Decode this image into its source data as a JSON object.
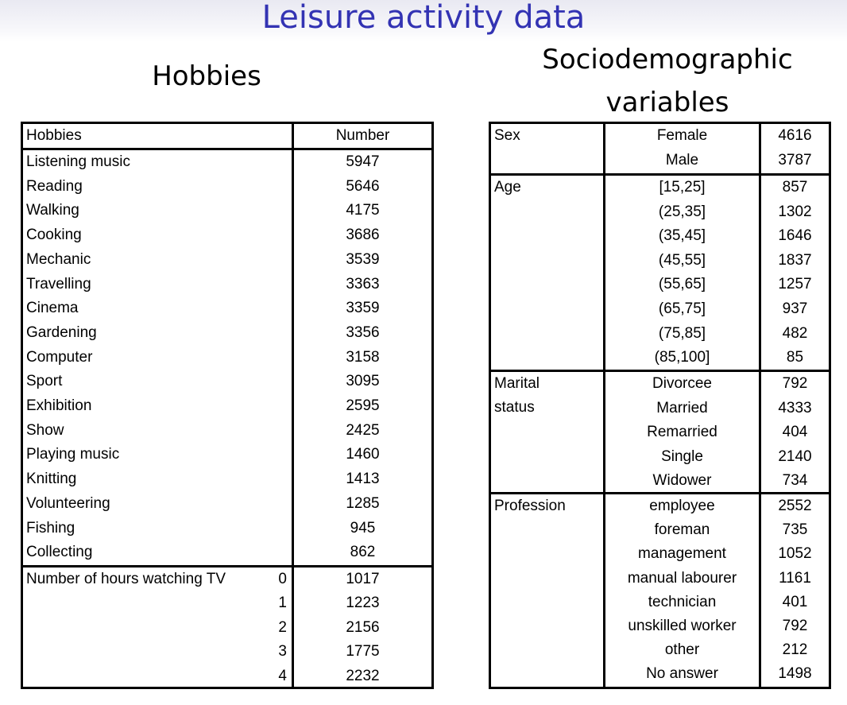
{
  "title": "Leisure activity data",
  "hobbies_heading": "Hobbies",
  "socio_heading_line1": "Sociodemographic",
  "socio_heading_line2": "variables",
  "hobbies_table": {
    "col_label": "Hobbies",
    "col_number": "Number",
    "rows": [
      {
        "label": "Listening music",
        "value": "5947"
      },
      {
        "label": "Reading",
        "value": "5646"
      },
      {
        "label": "Walking",
        "value": "4175"
      },
      {
        "label": "Cooking",
        "value": "3686"
      },
      {
        "label": "Mechanic",
        "value": "3539"
      },
      {
        "label": "Travelling",
        "value": "3363"
      },
      {
        "label": "Cinema",
        "value": "3359"
      },
      {
        "label": "Gardening",
        "value": "3356"
      },
      {
        "label": "Computer",
        "value": "3158"
      },
      {
        "label": "Sport",
        "value": "3095"
      },
      {
        "label": "Exhibition",
        "value": "2595"
      },
      {
        "label": "Show",
        "value": "2425"
      },
      {
        "label": "Playing music",
        "value": "1460"
      },
      {
        "label": "Knitting",
        "value": "1413"
      },
      {
        "label": "Volunteering",
        "value": "1285"
      },
      {
        "label": "Fishing",
        "value": "945"
      },
      {
        "label": "Collecting",
        "value": "862"
      }
    ],
    "tv_label": "Number of hours watching TV",
    "tv_rows": [
      {
        "hours": "0",
        "value": "1017"
      },
      {
        "hours": "1",
        "value": "1223"
      },
      {
        "hours": "2",
        "value": "2156"
      },
      {
        "hours": "3",
        "value": "1775"
      },
      {
        "hours": "4",
        "value": "2232"
      }
    ]
  },
  "socio_table": {
    "sex": {
      "label": "Sex",
      "rows": [
        {
          "category": "Female",
          "value": "4616"
        },
        {
          "category": "Male",
          "value": "3787"
        }
      ]
    },
    "age": {
      "label": "Age",
      "rows": [
        {
          "category": "[15,25]",
          "value": "857"
        },
        {
          "category": "(25,35]",
          "value": "1302"
        },
        {
          "category": "(35,45]",
          "value": "1646"
        },
        {
          "category": "(45,55]",
          "value": "1837"
        },
        {
          "category": "(55,65]",
          "value": "1257"
        },
        {
          "category": "(65,75]",
          "value": "937"
        },
        {
          "category": "(75,85]",
          "value": "482"
        },
        {
          "category": "(85,100]",
          "value": "85"
        }
      ]
    },
    "marital": {
      "label_line1": "Marital",
      "label_line2": "status",
      "rows": [
        {
          "category": "Divorcee",
          "value": "792"
        },
        {
          "category": "Married",
          "value": "4333"
        },
        {
          "category": "Remarried",
          "value": "404"
        },
        {
          "category": "Single",
          "value": "2140"
        },
        {
          "category": "Widower",
          "value": "734"
        }
      ]
    },
    "profession": {
      "label": "Profession",
      "rows": [
        {
          "category": "employee",
          "value": "2552"
        },
        {
          "category": "foreman",
          "value": "735"
        },
        {
          "category": "management",
          "value": "1052"
        },
        {
          "category": "manual labourer",
          "value": "1161"
        },
        {
          "category": "technician",
          "value": "401"
        },
        {
          "category": "unskilled worker",
          "value": "792"
        },
        {
          "category": "other",
          "value": "212"
        },
        {
          "category": "No answer",
          "value": "1498"
        }
      ]
    }
  }
}
